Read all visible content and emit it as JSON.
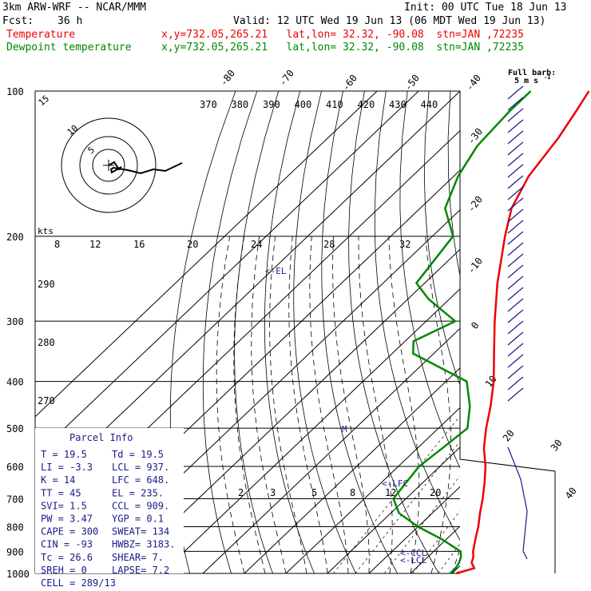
{
  "header": {
    "model": "3km ARW-WRF -- NCAR/MMM",
    "init": "Init: 00 UTC Tue 18 Jun 13",
    "fcst_label": "Fcst:",
    "fcst_value": "36 h",
    "valid": "Valid: 12 UTC Wed 19 Jun 13 (06 MDT Wed 19 Jun 13)"
  },
  "legend": {
    "temperature": {
      "name": "Temperature",
      "info": "x,y=732.05,265.21   lat,lon= 32.32, -90.08  stn=JAN ,72235",
      "color": "#ee0000"
    },
    "dewpoint": {
      "name": "Dewpoint temperature",
      "info": "x,y=732.05,265.21   lat,lon= 32.32, -90.08  stn=JAN ,72235",
      "color": "#008800"
    }
  },
  "barb_legend": {
    "line1": "Full barb:",
    "line2": "5 m s",
    "superscript": "-1"
  },
  "hodograph": {
    "unit": "kts",
    "ring_labels": [
      "5",
      "10",
      "15"
    ]
  },
  "parcel_info": {
    "title": "Parcel Info",
    "rows": [
      [
        "T  =   19.5",
        "Td =  19.5"
      ],
      [
        "LI =   -3.3",
        "LCL =  937."
      ],
      [
        "K  =     14",
        "LFC =  648."
      ],
      [
        "TT =     45",
        "EL  =  235."
      ],
      [
        "SVI=    1.5",
        "CCL =  909."
      ],
      [
        "PW =   3.47",
        "YGP =   0.1"
      ],
      [
        "CAPE =  300",
        "SWEAT=  134"
      ],
      [
        "CIN =   -93",
        "HWBZ= 3183."
      ],
      [
        "Tc =   26.6",
        "SHEAR=   7."
      ],
      [
        "SREH =    0",
        "LAPSE=  7.2"
      ],
      [
        "CELL = 289/13",
        ""
      ]
    ]
  },
  "chart_data": {
    "type": "line",
    "chart_kind": "skew-T log-p sounding",
    "y_axis": "pressure (hPa)",
    "ylim": [
      1000,
      100
    ],
    "pressure_labels": [
      "100",
      "200",
      "300",
      "400",
      "500",
      "600",
      "700",
      "800",
      "900",
      "1000"
    ],
    "isotherm_labels_top": [
      "-80",
      "-70",
      "-60",
      "-50",
      "-40"
    ],
    "isotherm_labels_right": [
      "-30",
      "-20",
      "-10",
      "0",
      "10",
      "20",
      "30",
      "40"
    ],
    "theta_labels": [
      "370",
      "380",
      "390",
      "400",
      "410",
      "420",
      "430",
      "440"
    ],
    "theta_labels_left": [
      "290",
      "280",
      "270"
    ],
    "mixing_ratio_labels_upper": [
      "8",
      "12",
      "16",
      "20",
      "24",
      "28",
      "32"
    ],
    "mixing_ratio_labels_lower": [
      "2",
      "3",
      "5",
      "8",
      "12",
      "20"
    ],
    "level_markers": [
      "<-EL",
      "<-LFC",
      "<-CCL",
      "<-LCL",
      "M"
    ],
    "series": [
      {
        "name": "Temperature",
        "color": "#ee0000",
        "points": [
          {
            "p": 1000,
            "t": 21.0
          },
          {
            "p": 975,
            "t": 24.0
          },
          {
            "p": 950,
            "t": 22.0
          },
          {
            "p": 925,
            "t": 21.0
          },
          {
            "p": 900,
            "t": 19.5
          },
          {
            "p": 850,
            "t": 17.0
          },
          {
            "p": 800,
            "t": 14.5
          },
          {
            "p": 750,
            "t": 11.5
          },
          {
            "p": 700,
            "t": 8.5
          },
          {
            "p": 650,
            "t": 5.0
          },
          {
            "p": 600,
            "t": 1.0
          },
          {
            "p": 550,
            "t": -4.0
          },
          {
            "p": 500,
            "t": -8.5
          },
          {
            "p": 450,
            "t": -13.0
          },
          {
            "p": 400,
            "t": -18.5
          },
          {
            "p": 350,
            "t": -25.5
          },
          {
            "p": 300,
            "t": -33.5
          },
          {
            "p": 250,
            "t": -42.5
          },
          {
            "p": 200,
            "t": -52.5
          },
          {
            "p": 175,
            "t": -58.0
          },
          {
            "p": 150,
            "t": -62.0
          },
          {
            "p": 125,
            "t": -64.5
          },
          {
            "p": 110,
            "t": -67.0
          },
          {
            "p": 100,
            "t": -69.0
          }
        ]
      },
      {
        "name": "Dewpoint temperature",
        "color": "#008800",
        "points": [
          {
            "p": 1000,
            "t": 19.5
          },
          {
            "p": 975,
            "t": 19.5
          },
          {
            "p": 950,
            "t": 19.0
          },
          {
            "p": 925,
            "t": 18.0
          },
          {
            "p": 900,
            "t": 16.5
          },
          {
            "p": 850,
            "t": 9.0
          },
          {
            "p": 800,
            "t": 0.0
          },
          {
            "p": 750,
            "t": -8.0
          },
          {
            "p": 700,
            "t": -13.0
          },
          {
            "p": 650,
            "t": -14.0
          },
          {
            "p": 600,
            "t": -15.0
          },
          {
            "p": 550,
            "t": -14.0
          },
          {
            "p": 500,
            "t": -13.0
          },
          {
            "p": 450,
            "t": -18.0
          },
          {
            "p": 400,
            "t": -25.0
          },
          {
            "p": 350,
            "t": -45.0
          },
          {
            "p": 330,
            "t": -48.0
          },
          {
            "p": 300,
            "t": -43.0
          },
          {
            "p": 270,
            "t": -55.0
          },
          {
            "p": 250,
            "t": -62.0
          },
          {
            "p": 200,
            "t": -65.0
          },
          {
            "p": 175,
            "t": -74.0
          },
          {
            "p": 150,
            "t": -79.0
          },
          {
            "p": 130,
            "t": -82.0
          },
          {
            "p": 110,
            "t": -83.0
          },
          {
            "p": 100,
            "t": -83.0
          }
        ]
      }
    ]
  }
}
